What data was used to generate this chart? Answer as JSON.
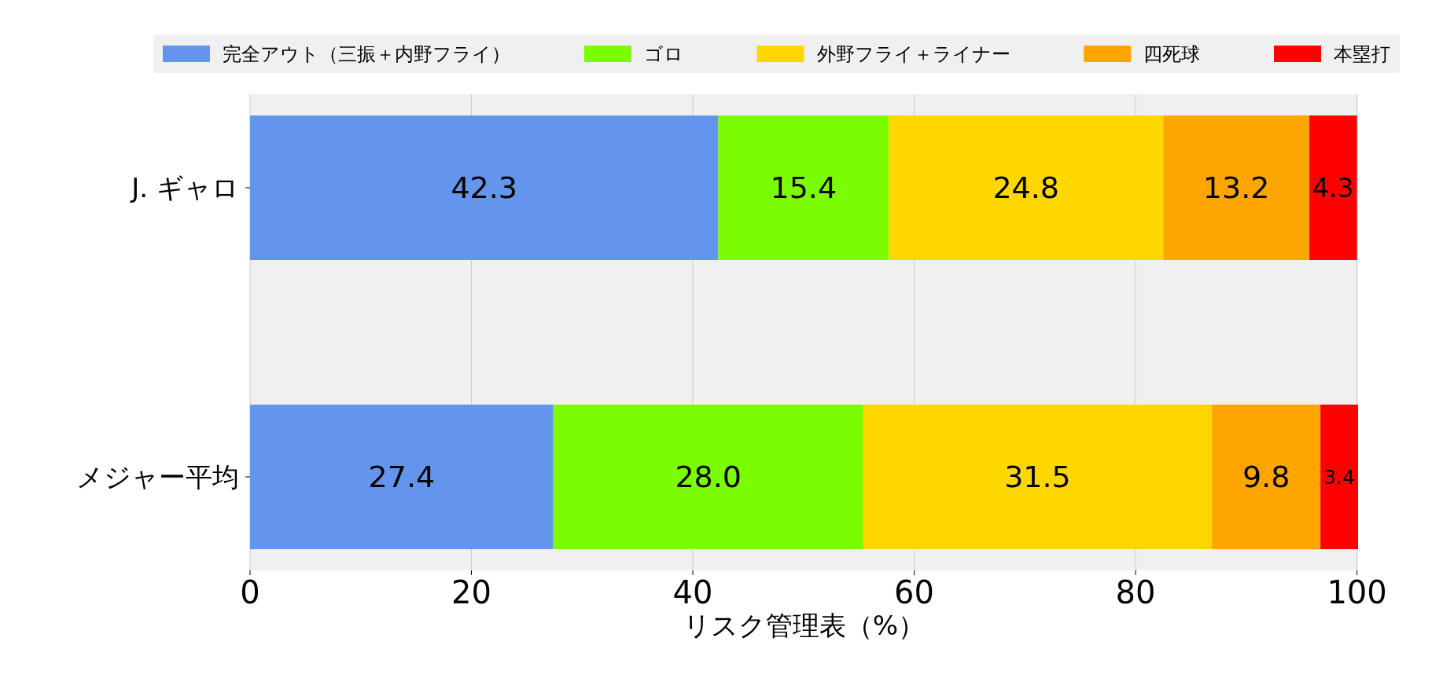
{
  "chart_data": {
    "type": "bar",
    "orientation": "horizontal",
    "stacked": true,
    "xlabel": "リスク管理表（%）",
    "categories": [
      "J. ギャロ",
      "メジャー平均"
    ],
    "series": [
      {
        "name": "完全アウト（三振＋内野フライ）",
        "color": "#6495ed",
        "values": [
          42.3,
          27.4
        ],
        "value_labels": [
          "42.3",
          "27.4"
        ]
      },
      {
        "name": "ゴロ",
        "color": "#7cfc00",
        "values": [
          15.4,
          28.0
        ],
        "value_labels": [
          "15.4",
          "28.0"
        ]
      },
      {
        "name": "外野フライ＋ライナー",
        "color": "#ffd700",
        "values": [
          24.8,
          31.5
        ],
        "value_labels": [
          "24.8",
          "31.5"
        ]
      },
      {
        "name": "四死球",
        "color": "#ffa500",
        "values": [
          13.2,
          9.8
        ],
        "value_labels": [
          "13.2",
          "9.8"
        ]
      },
      {
        "name": "本塁打",
        "color": "#ff0000",
        "values": [
          4.3,
          3.4
        ],
        "value_labels": [
          "4.3",
          "3.4"
        ]
      }
    ],
    "xlim": [
      0,
      100.1
    ],
    "xticks": [
      0,
      20,
      40,
      60,
      80,
      100
    ],
    "grid": "x",
    "legend": "top",
    "data_labels": true
  }
}
